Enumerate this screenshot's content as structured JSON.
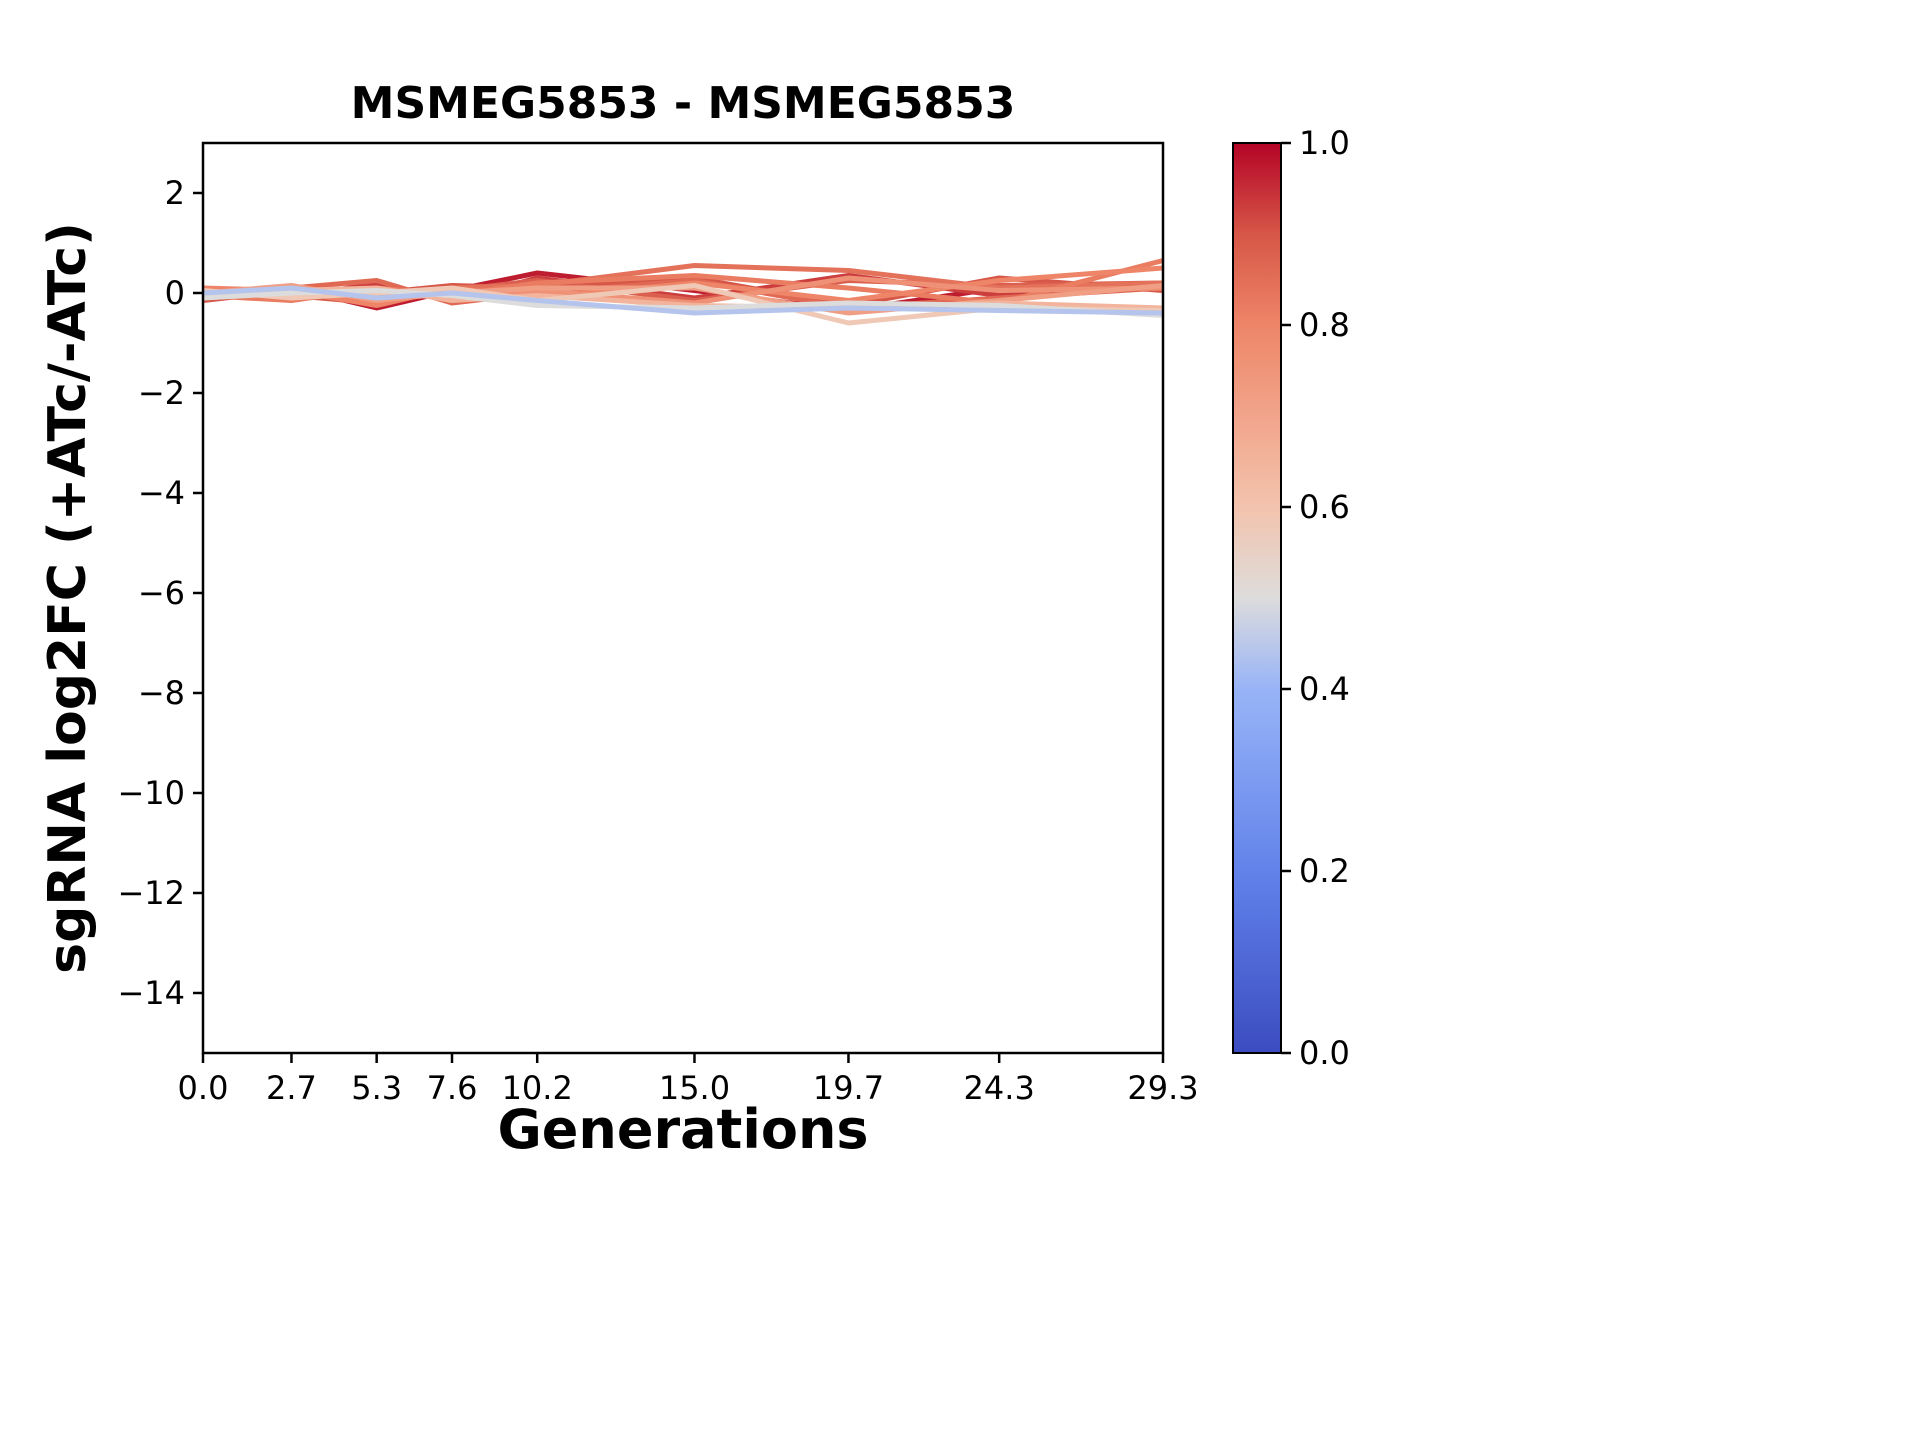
{
  "figure": {
    "background": "#ffffff",
    "spine_color": "#000000"
  },
  "chart_data": {
    "type": "line",
    "title": "MSMEG5853 - MSMEG5853",
    "xlabel": "Generations",
    "ylabel": "sgRNA log2FC (+ATc/-ATc)",
    "xlim": [
      0,
      29.3
    ],
    "ylim": [
      -15.2,
      3.0
    ],
    "grid": false,
    "legend": "none",
    "xticks": [
      0.0,
      2.7,
      5.3,
      7.6,
      10.2,
      15.0,
      19.7,
      24.3,
      29.3
    ],
    "xticklabels": [
      "0.0",
      "2.7",
      "5.3",
      "7.6",
      "10.2",
      "15.0",
      "19.7",
      "24.3",
      "29.3"
    ],
    "yticks": [
      2,
      0,
      -2,
      -4,
      -6,
      -8,
      -10,
      -12,
      -14
    ],
    "yticklabels": [
      "2",
      "0",
      "−2",
      "−4",
      "−6",
      "−8",
      "−10",
      "−12",
      "−14"
    ],
    "x": [
      0.0,
      2.7,
      5.3,
      7.6,
      10.2,
      15.0,
      19.7,
      24.3,
      29.3
    ],
    "line_width": 5,
    "series": [
      {
        "color_value": 0.97,
        "values": [
          -0.05,
          0.1,
          -0.3,
          0.05,
          0.4,
          0.05,
          -0.35,
          0.1,
          0.15
        ]
      },
      {
        "color_value": 0.93,
        "values": [
          0.05,
          -0.1,
          0.2,
          -0.15,
          0.3,
          -0.1,
          0.35,
          -0.05,
          0.1
        ]
      },
      {
        "color_value": 0.9,
        "values": [
          -0.15,
          0.05,
          0.0,
          0.15,
          0.1,
          0.3,
          -0.25,
          0.3,
          0.05
        ]
      },
      {
        "color_value": 0.88,
        "values": [
          0.0,
          -0.05,
          -0.2,
          0.05,
          0.25,
          -0.15,
          0.25,
          0.15,
          0.2
        ]
      },
      {
        "color_value": 0.86,
        "values": [
          -0.1,
          0.1,
          0.25,
          -0.2,
          0.0,
          0.25,
          -0.3,
          -0.1,
          0.1
        ]
      },
      {
        "color_value": 0.84,
        "values": [
          0.05,
          0.0,
          -0.1,
          0.1,
          0.15,
          0.55,
          0.45,
          0.1,
          0.2
        ]
      },
      {
        "color_value": 0.82,
        "values": [
          -0.05,
          -0.15,
          0.1,
          -0.05,
          0.2,
          0.35,
          0.1,
          -0.2,
          0.65
        ]
      },
      {
        "color_value": 0.8,
        "values": [
          0.1,
          0.05,
          -0.25,
          0.1,
          -0.1,
          0.2,
          -0.15,
          0.25,
          0.5
        ]
      },
      {
        "color_value": 0.76,
        "values": [
          -0.1,
          0.0,
          0.05,
          -0.1,
          0.05,
          -0.2,
          0.3,
          0.05,
          0.1
        ]
      },
      {
        "color_value": 0.72,
        "values": [
          0.0,
          0.15,
          -0.15,
          0.0,
          0.1,
          0.1,
          -0.4,
          -0.15,
          0.15
        ]
      },
      {
        "color_value": 0.65,
        "values": [
          -0.05,
          0.05,
          0.1,
          -0.15,
          -0.05,
          -0.25,
          -0.3,
          -0.2,
          -0.3
        ]
      },
      {
        "color_value": 0.58,
        "values": [
          0.05,
          -0.1,
          0.0,
          0.1,
          -0.15,
          0.15,
          -0.6,
          -0.3,
          -0.35
        ]
      },
      {
        "color_value": 0.5,
        "values": [
          -0.1,
          0.0,
          0.05,
          -0.05,
          -0.25,
          -0.3,
          -0.2,
          -0.25,
          -0.45
        ]
      },
      {
        "color_value": 0.44,
        "values": [
          0.0,
          0.1,
          -0.1,
          0.0,
          -0.15,
          -0.4,
          -0.3,
          -0.35,
          -0.4
        ]
      }
    ],
    "colorbar": {
      "cmap": "coolwarm",
      "range": [
        0.0,
        1.0
      ],
      "ticks": [
        0.0,
        0.2,
        0.4,
        0.6,
        0.8,
        1.0
      ],
      "ticklabels": [
        "0.0",
        "0.2",
        "0.4",
        "0.6",
        "0.8",
        "1.0"
      ],
      "stops": [
        [
          0.0,
          [
            59,
            76,
            192
          ]
        ],
        [
          0.2,
          [
            98,
            130,
            234
          ]
        ],
        [
          0.4,
          [
            152,
            180,
            247
          ]
        ],
        [
          0.5,
          [
            221,
            220,
            220
          ]
        ],
        [
          0.6,
          [
            243,
            195,
            173
          ]
        ],
        [
          0.8,
          [
            238,
            133,
            104
          ]
        ],
        [
          0.9,
          [
            214,
            86,
            71
          ]
        ],
        [
          1.0,
          [
            180,
            4,
            38
          ]
        ]
      ]
    }
  }
}
